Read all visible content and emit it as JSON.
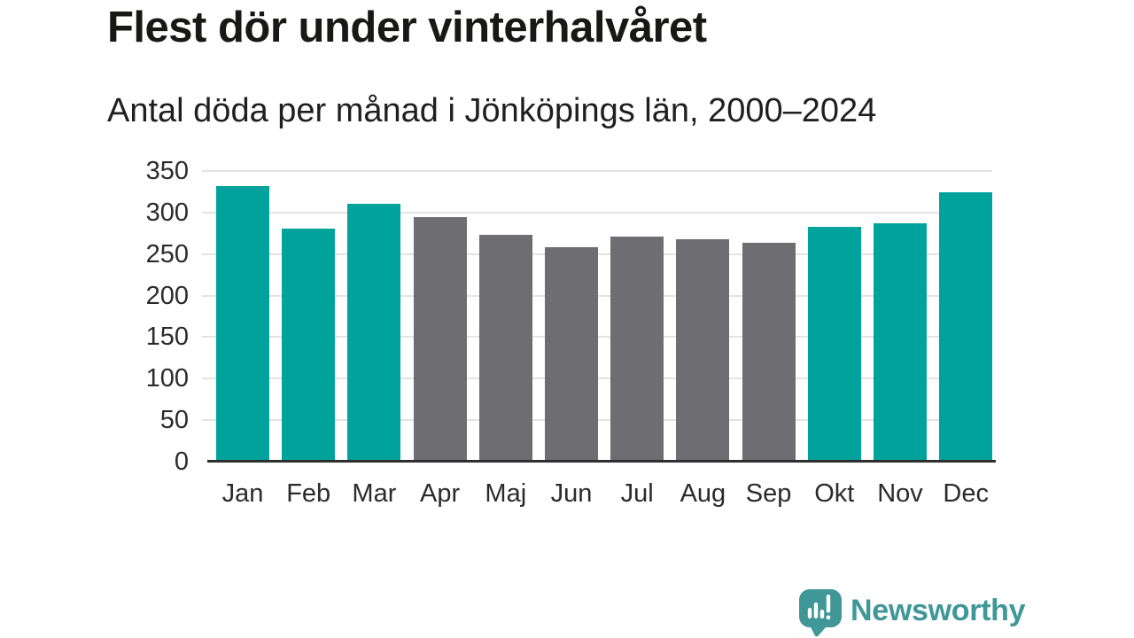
{
  "header": {
    "title": "Flest dör under vinterhalvåret",
    "subtitle": "Antal döda per månad i Jönköpings län, 2000–2024"
  },
  "chart_data": {
    "type": "bar",
    "title": "Flest dör under vinterhalvåret",
    "subtitle": "Antal döda per månad i Jönköpings län, 2000–2024",
    "categories": [
      "Jan",
      "Feb",
      "Mar",
      "Apr",
      "Maj",
      "Jun",
      "Jul",
      "Aug",
      "Sep",
      "Okt",
      "Nov",
      "Dec"
    ],
    "values": [
      332,
      281,
      311,
      294,
      273,
      258,
      271,
      268,
      264,
      283,
      287,
      324
    ],
    "bar_colors": [
      "#00a39b",
      "#00a39b",
      "#00a39b",
      "#6d6d72",
      "#6d6d72",
      "#6d6d72",
      "#6d6d72",
      "#6d6d72",
      "#6d6d72",
      "#00a39b",
      "#00a39b",
      "#00a39b"
    ],
    "xlabel": "",
    "ylabel": "",
    "ylim": [
      0,
      350
    ],
    "yticks": [
      0,
      50,
      100,
      150,
      200,
      250,
      300,
      350
    ],
    "grid": "horizontal",
    "legend": "none"
  },
  "colors": {
    "winter_bar": "#00a39b",
    "summer_bar": "#6d6d72",
    "gridline": "#e3e3e3",
    "axis_line": "#2f2f2f",
    "title_text": "#181816",
    "tick_text": "#2b2b2b",
    "brand_teal": "#3f9798"
  },
  "footer": {
    "brand": "Newsworthy",
    "logo_icon": "speech-bubble-with-bar-chart-and-exclamation"
  }
}
